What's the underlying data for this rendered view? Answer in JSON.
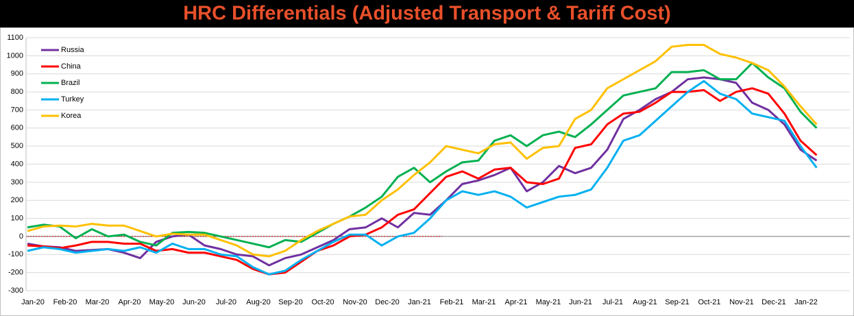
{
  "chart_data": {
    "type": "line",
    "title": "HRC Differentials (Adjusted Transport & Tariff Cost)",
    "categories": [
      "Jan-20",
      null,
      "Feb-20",
      null,
      "Mar-20",
      null,
      "Apr-20",
      null,
      "May-20",
      null,
      "Jun-20",
      null,
      "Jul-20",
      null,
      "Aug-20",
      null,
      "Sep-20",
      null,
      "Oct-20",
      null,
      "Nov-20",
      null,
      "Dec-20",
      null,
      "Jan-21",
      null,
      "Feb-21",
      null,
      "Mar-21",
      null,
      "Apr-21",
      null,
      "May-21",
      null,
      "Jun-21",
      null,
      "Jul-21",
      null,
      "Aug-21",
      null,
      "Sep-21",
      null,
      "Oct-21",
      null,
      "Nov-21",
      null,
      "Dec-21",
      null,
      "Jan-22",
      null
    ],
    "series": [
      {
        "name": "Russia",
        "color": "#7030a0",
        "values": [
          -40,
          -55,
          -60,
          -80,
          -75,
          -70,
          -90,
          -120,
          -30,
          0,
          10,
          -50,
          -70,
          -100,
          -110,
          -160,
          -120,
          -100,
          -60,
          -20,
          40,
          50,
          100,
          50,
          130,
          120,
          200,
          290,
          310,
          340,
          380,
          250,
          300,
          390,
          350,
          380,
          480,
          650,
          700,
          760,
          800,
          870,
          880,
          870,
          850,
          740,
          700,
          620,
          480,
          420
        ]
      },
      {
        "name": "China",
        "color": "#ff0000",
        "values": [
          -50,
          -55,
          -65,
          -50,
          -30,
          -30,
          -40,
          -40,
          -80,
          -70,
          -90,
          -90,
          -110,
          -130,
          -180,
          -210,
          -200,
          -140,
          -80,
          -50,
          0,
          10,
          50,
          120,
          150,
          240,
          330,
          360,
          320,
          370,
          380,
          300,
          290,
          320,
          490,
          510,
          620,
          680,
          690,
          740,
          800,
          800,
          810,
          750,
          800,
          820,
          790,
          680,
          530,
          450
        ]
      },
      {
        "name": "Brazil",
        "color": "#00b050",
        "values": [
          50,
          65,
          55,
          -10,
          40,
          0,
          10,
          -30,
          -50,
          20,
          25,
          20,
          0,
          -20,
          -40,
          -60,
          -20,
          -30,
          20,
          70,
          110,
          160,
          220,
          330,
          380,
          300,
          360,
          410,
          420,
          530,
          560,
          500,
          560,
          580,
          550,
          620,
          700,
          780,
          800,
          820,
          910,
          910,
          920,
          870,
          870,
          960,
          880,
          820,
          690,
          600
        ]
      },
      {
        "name": "Turkey",
        "color": "#00b0f0",
        "values": [
          -80,
          -60,
          -70,
          -90,
          -80,
          -70,
          -80,
          -60,
          -90,
          -40,
          -70,
          -70,
          -100,
          -110,
          -170,
          -210,
          -190,
          -130,
          -80,
          -30,
          10,
          10,
          -50,
          0,
          20,
          100,
          200,
          250,
          230,
          250,
          220,
          160,
          190,
          220,
          230,
          260,
          380,
          530,
          560,
          640,
          720,
          800,
          860,
          790,
          760,
          680,
          660,
          640,
          500,
          380
        ]
      },
      {
        "name": "Korea",
        "color": "#ffc000",
        "values": [
          30,
          55,
          60,
          55,
          70,
          60,
          60,
          30,
          0,
          15,
          10,
          10,
          -20,
          -50,
          -100,
          -110,
          -80,
          -20,
          30,
          70,
          110,
          120,
          200,
          260,
          340,
          410,
          500,
          480,
          460,
          510,
          520,
          430,
          490,
          500,
          650,
          700,
          820,
          870,
          920,
          970,
          1050,
          1060,
          1060,
          1010,
          990,
          960,
          920,
          830,
          720,
          620
        ]
      }
    ],
    "ylim": [
      -300,
      1100
    ],
    "yticks": [
      -300,
      -200,
      -100,
      0,
      100,
      200,
      300,
      400,
      500,
      600,
      700,
      800,
      900,
      1000,
      1100
    ],
    "grid": true,
    "legend": "top-left"
  }
}
